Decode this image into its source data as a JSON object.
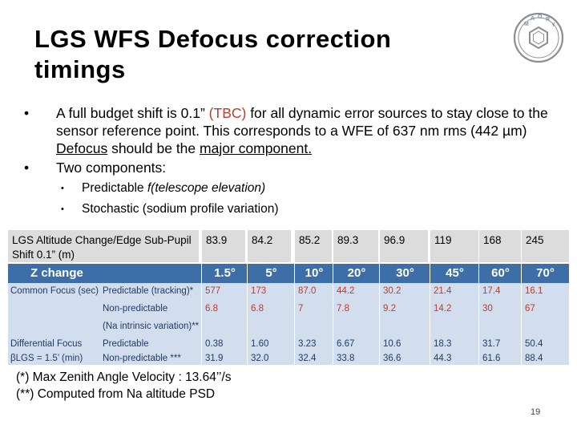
{
  "title": "LGS WFS Defocus correction timings",
  "bullets": {
    "b1_part1": "A full budget shift is 0.1” ",
    "b1_tbc": "(TBC)",
    "b1_part2": " for all dynamic error sources to stay close to the sensor reference point. This corresponds to a WFE of 637 nm rms (442 µm) ",
    "b1_defocus": "Defocus",
    "b1_part3": " should be the ",
    "b1_major": "major component.",
    "b2": "Two components:",
    "sub1_a": "Predictable ",
    "sub1_b": "f(telescope elevation)",
    "sub2": "Stochastic (sodium profile variation)",
    "bullet_glyph": "•"
  },
  "top_table": {
    "label": "LGS Altitude Change/Edge Sub-Pupil Shift 0.1” (m)",
    "values": [
      "83.9",
      "84.2",
      "85.2",
      "89.3",
      "96.9",
      "119",
      "168",
      "245"
    ]
  },
  "main_table": {
    "header": [
      "Z change",
      "",
      "1.5°",
      "5°",
      "10°",
      "20°",
      "30°",
      "45°",
      "60°",
      "70°"
    ],
    "rows": [
      {
        "group": "Common Focus (sec)",
        "label": "Predictable (tracking)*",
        "values": [
          "577",
          "173",
          "87.0",
          "44.2",
          "30.2",
          "21.4",
          "17.4",
          "16.1"
        ],
        "red": true
      },
      {
        "group": "",
        "label": "Non-predictable",
        "values": [
          "6.8",
          "6.8",
          "7",
          "7.8",
          "9.2",
          "14.2",
          "30",
          "67"
        ],
        "red": true
      },
      {
        "group": "",
        "label": "(Na intrinsic variation)**",
        "values": [
          "",
          "",
          "",
          "",
          "",
          "",
          "",
          ""
        ],
        "red": false
      },
      {
        "group": "Differential Focus",
        "label": "Predictable",
        "values": [
          "0.38",
          "1.60",
          "3.23",
          "6.67",
          "10.6",
          "18.3",
          "31.7",
          "50.4"
        ],
        "red": false
      },
      {
        "group": "βLGS = 1.5’ (min)",
        "label": "Non-predictable ***",
        "values": [
          "31.9",
          "32.0",
          "32.4",
          "33.8",
          "36.6",
          "44.3",
          "61.6",
          "88.4"
        ],
        "red": false
      }
    ]
  },
  "notes": [
    "(*) Max Zenith Angle Velocity : 13.64’’/s",
    "(**) Computed from Na altitude PSD"
  ],
  "page_number": "19",
  "logo": {
    "letters": [
      "M",
      "A",
      "O",
      "R",
      "Y"
    ],
    "color": "#8a8f96"
  }
}
